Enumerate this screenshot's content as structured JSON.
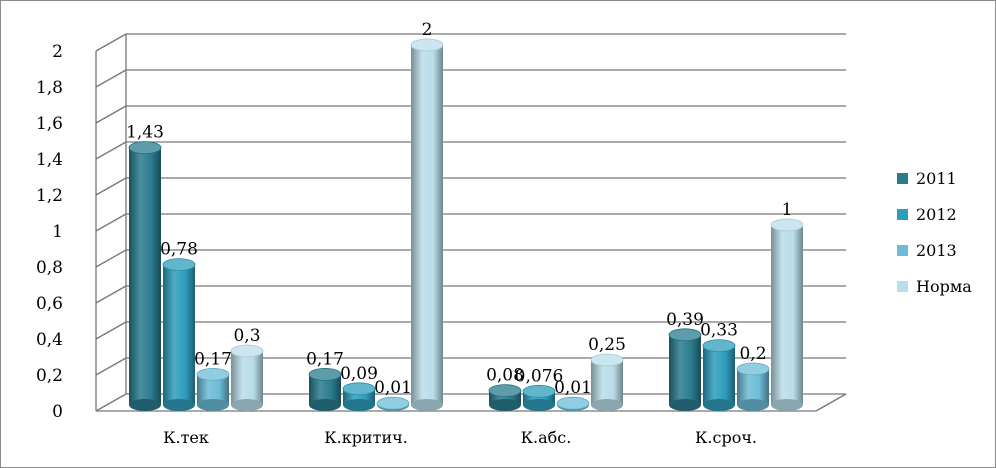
{
  "chart_data": {
    "type": "bar",
    "three_d": true,
    "categories": [
      "К.тек",
      "К.критич.",
      "К.абс.",
      "К.сроч."
    ],
    "series": [
      {
        "name": "2011",
        "values": [
          1.43,
          0.17,
          0.08,
          0.39
        ],
        "labels": [
          "1,43",
          "0,17",
          "0,08",
          "0,39"
        ],
        "color": "#2a7b8e"
      },
      {
        "name": "2012",
        "values": [
          0.78,
          0.09,
          0.076,
          0.33
        ],
        "labels": [
          "0,78",
          "0,09",
          "0,076",
          "0,33"
        ],
        "color": "#2e9dbb"
      },
      {
        "name": "2013",
        "values": [
          0.17,
          0.01,
          0.01,
          0.2
        ],
        "labels": [
          "0,17",
          "0,01",
          "0,01",
          "0,2"
        ],
        "color": "#6cbcd6"
      },
      {
        "name": "Норма",
        "values": [
          0.3,
          2,
          0.25,
          1
        ],
        "labels": [
          "0,3",
          "2",
          "0,25",
          "1"
        ],
        "color": "#b9dde9"
      }
    ],
    "ylim": [
      0,
      2
    ],
    "yticks": [
      "0",
      "0,2",
      "0,4",
      "0,6",
      "0,8",
      "1",
      "1,2",
      "1,4",
      "1,6",
      "1,8",
      "2"
    ],
    "grid": true,
    "legend_position": "right",
    "title": "",
    "xlabel": "",
    "ylabel": ""
  }
}
